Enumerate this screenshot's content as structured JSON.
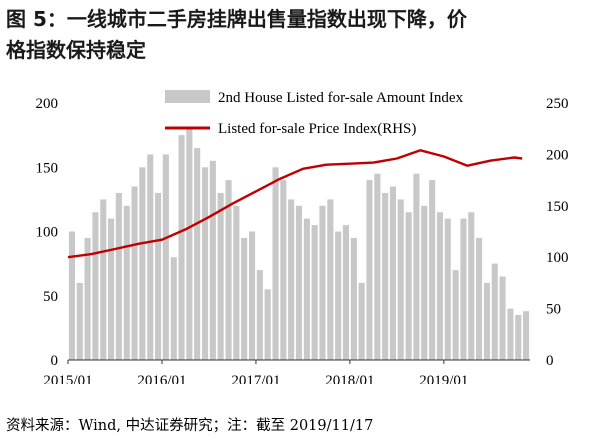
{
  "title": {
    "line1": "图 5：一线城市二手房挂牌出售量指数出现下降，价",
    "line2": "格指数保持稳定"
  },
  "source_note": "资料来源：Wind, 中达证券研究；注：截至 2019/11/17",
  "chart_data": {
    "type": "bar+line",
    "x_ticks": [
      "2015/01",
      "2016/01",
      "2017/01",
      "2018/01",
      "2019/01"
    ],
    "x_range": [
      "2015-01",
      "2019-11"
    ],
    "y_left": {
      "ticks": [
        0,
        50,
        100,
        150,
        200
      ],
      "range": [
        0,
        200
      ]
    },
    "y_right": {
      "ticks": [
        0,
        50,
        100,
        150,
        200,
        250
      ],
      "range": [
        0,
        250
      ]
    },
    "legend_placement": "top",
    "series": [
      {
        "name": "2nd House Listed for-sale Amount Index",
        "type": "bar",
        "axis": "left",
        "color": "#c8c8c8",
        "x": [
          "2015-01",
          "2015-02",
          "2015-03",
          "2015-04",
          "2015-05",
          "2015-06",
          "2015-07",
          "2015-08",
          "2015-09",
          "2015-10",
          "2015-11",
          "2015-12",
          "2016-01",
          "2016-02",
          "2016-03",
          "2016-04",
          "2016-05",
          "2016-06",
          "2016-07",
          "2016-08",
          "2016-09",
          "2016-10",
          "2016-11",
          "2016-12",
          "2017-01",
          "2017-02",
          "2017-03",
          "2017-04",
          "2017-05",
          "2017-06",
          "2017-07",
          "2017-08",
          "2017-09",
          "2017-10",
          "2017-11",
          "2017-12",
          "2018-01",
          "2018-02",
          "2018-03",
          "2018-04",
          "2018-05",
          "2018-06",
          "2018-07",
          "2018-08",
          "2018-09",
          "2018-10",
          "2018-11",
          "2018-12",
          "2019-01",
          "2019-02",
          "2019-03",
          "2019-04",
          "2019-05",
          "2019-06",
          "2019-07",
          "2019-08",
          "2019-09",
          "2019-10",
          "2019-11"
        ],
        "values": [
          100,
          60,
          95,
          115,
          125,
          110,
          130,
          120,
          135,
          150,
          160,
          130,
          160,
          80,
          175,
          180,
          165,
          150,
          155,
          130,
          140,
          120,
          95,
          100,
          70,
          55,
          150,
          140,
          125,
          120,
          110,
          105,
          120,
          125,
          100,
          105,
          95,
          60,
          140,
          145,
          130,
          135,
          125,
          115,
          145,
          120,
          140,
          115,
          110,
          70,
          110,
          115,
          95,
          60,
          75,
          65,
          40,
          35,
          38
        ]
      },
      {
        "name": "Listed for-sale Price Index(RHS)",
        "type": "line",
        "axis": "right",
        "color": "#c00000",
        "x": [
          "2015-01",
          "2015-04",
          "2015-07",
          "2015-10",
          "2016-01",
          "2016-04",
          "2016-07",
          "2016-10",
          "2017-01",
          "2017-04",
          "2017-07",
          "2017-10",
          "2018-01",
          "2018-04",
          "2018-07",
          "2018-10",
          "2019-01",
          "2019-04",
          "2019-07",
          "2019-10",
          "2019-11"
        ],
        "values": [
          100,
          103,
          108,
          113,
          117,
          127,
          139,
          152,
          164,
          176,
          186,
          190,
          191,
          192,
          196,
          204,
          198,
          189,
          194,
          197,
          196
        ]
      }
    ]
  }
}
